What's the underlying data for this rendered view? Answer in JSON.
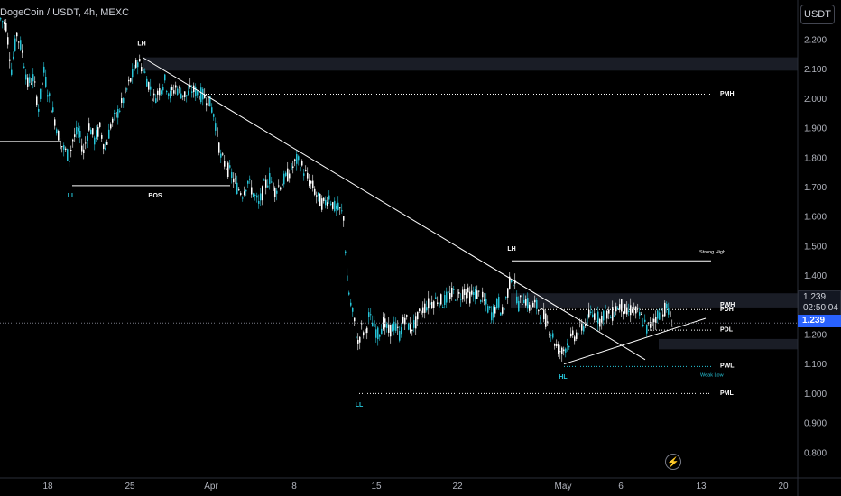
{
  "header": {
    "title": "DogeCoin / USDT, 4h, MEXC",
    "currency_label": "USDT"
  },
  "price_panel": {
    "last_price": "1.239",
    "countdown": "02:50:04",
    "current_price_label": "1.239"
  },
  "colors": {
    "background": "#000000",
    "candle_up": "#26c6da",
    "candle_down": "#ffffff",
    "drawing": "#ffffff",
    "label_blue": "#26c6da",
    "axis_text": "#b2b5be",
    "current_price": "#2962ff"
  },
  "chart_data": {
    "type": "candlestick",
    "symbol": "DogeCoin / USDT",
    "timeframe": "4h",
    "exchange": "MEXC",
    "y_axis": {
      "ticks": [
        "2.200",
        "2.100",
        "2.000",
        "1.900",
        "1.800",
        "1.700",
        "1.600",
        "1.500",
        "1.400",
        "1.300",
        "1.200",
        "1.100",
        "1.000",
        "0.900",
        "0.800"
      ],
      "range": [
        0.72,
        2.29
      ]
    },
    "x_axis": {
      "ticks": [
        "18",
        "25",
        "Apr",
        "8",
        "15",
        "22",
        "May",
        "6",
        "13",
        "20"
      ]
    },
    "price_path": [
      [
        0,
        2.27
      ],
      [
        6,
        2.25
      ],
      [
        12,
        2.1
      ],
      [
        18,
        2.22
      ],
      [
        24,
        2.16
      ],
      [
        30,
        2.05
      ],
      [
        36,
        2.07
      ],
      [
        42,
        1.97
      ],
      [
        48,
        2.09
      ],
      [
        54,
        2.0
      ],
      [
        60,
        1.93
      ],
      [
        66,
        1.85
      ],
      [
        72,
        1.82
      ],
      [
        76,
        1.8
      ],
      [
        80,
        1.86
      ],
      [
        86,
        1.89
      ],
      [
        92,
        1.82
      ],
      [
        98,
        1.91
      ],
      [
        104,
        1.86
      ],
      [
        110,
        1.9
      ],
      [
        116,
        1.83
      ],
      [
        122,
        1.91
      ],
      [
        128,
        1.94
      ],
      [
        134,
        1.98
      ],
      [
        140,
        2.03
      ],
      [
        146,
        2.08
      ],
      [
        152,
        2.13
      ],
      [
        158,
        2.1
      ],
      [
        164,
        2.05
      ],
      [
        170,
        2.0
      ],
      [
        176,
        2.03
      ],
      [
        182,
        2.06
      ],
      [
        188,
        2.01
      ],
      [
        194,
        2.04
      ],
      [
        200,
        2.02
      ],
      [
        206,
        2.01
      ],
      [
        212,
        2.03
      ],
      [
        218,
        2.02
      ],
      [
        224,
        2.01
      ],
      [
        230,
        2.0
      ],
      [
        236,
        1.95
      ],
      [
        240,
        1.88
      ],
      [
        244,
        1.8
      ],
      [
        250,
        1.77
      ],
      [
        256,
        1.74
      ],
      [
        262,
        1.7
      ],
      [
        268,
        1.68
      ],
      [
        274,
        1.72
      ],
      [
        280,
        1.68
      ],
      [
        286,
        1.64
      ],
      [
        292,
        1.7
      ],
      [
        298,
        1.73
      ],
      [
        304,
        1.69
      ],
      [
        310,
        1.71
      ],
      [
        316,
        1.73
      ],
      [
        322,
        1.76
      ],
      [
        328,
        1.79
      ],
      [
        334,
        1.77
      ],
      [
        340,
        1.73
      ],
      [
        346,
        1.7
      ],
      [
        352,
        1.66
      ],
      [
        358,
        1.64
      ],
      [
        364,
        1.67
      ],
      [
        370,
        1.63
      ],
      [
        376,
        1.62
      ],
      [
        380,
        1.6
      ],
      [
        384,
        1.38
      ],
      [
        388,
        1.3
      ],
      [
        392,
        1.24
      ],
      [
        396,
        1.17
      ],
      [
        400,
        1.22
      ],
      [
        404,
        1.2
      ],
      [
        408,
        1.26
      ],
      [
        412,
        1.24
      ],
      [
        418,
        1.2
      ],
      [
        424,
        1.24
      ],
      [
        430,
        1.21
      ],
      [
        436,
        1.23
      ],
      [
        442,
        1.2
      ],
      [
        448,
        1.26
      ],
      [
        454,
        1.22
      ],
      [
        460,
        1.24
      ],
      [
        466,
        1.28
      ],
      [
        472,
        1.3
      ],
      [
        478,
        1.31
      ],
      [
        484,
        1.32
      ],
      [
        490,
        1.31
      ],
      [
        496,
        1.33
      ],
      [
        502,
        1.34
      ],
      [
        508,
        1.33
      ],
      [
        514,
        1.35
      ],
      [
        520,
        1.33
      ],
      [
        526,
        1.34
      ],
      [
        532,
        1.33
      ],
      [
        538,
        1.3
      ],
      [
        544,
        1.27
      ],
      [
        548,
        1.29
      ],
      [
        552,
        1.31
      ],
      [
        556,
        1.27
      ],
      [
        560,
        1.32
      ],
      [
        566,
        1.4
      ],
      [
        570,
        1.36
      ],
      [
        574,
        1.3
      ],
      [
        580,
        1.33
      ],
      [
        586,
        1.29
      ],
      [
        592,
        1.3
      ],
      [
        598,
        1.28
      ],
      [
        604,
        1.25
      ],
      [
        610,
        1.21
      ],
      [
        616,
        1.16
      ],
      [
        622,
        1.14
      ],
      [
        628,
        1.17
      ],
      [
        634,
        1.19
      ],
      [
        640,
        1.21
      ],
      [
        646,
        1.23
      ],
      [
        652,
        1.26
      ],
      [
        658,
        1.27
      ],
      [
        664,
        1.25
      ],
      [
        670,
        1.28
      ],
      [
        676,
        1.26
      ],
      [
        682,
        1.29
      ],
      [
        688,
        1.3
      ],
      [
        694,
        1.27
      ],
      [
        700,
        1.29
      ],
      [
        706,
        1.27
      ],
      [
        712,
        1.25
      ],
      [
        716,
        1.22
      ],
      [
        720,
        1.23
      ],
      [
        726,
        1.26
      ],
      [
        732,
        1.28
      ],
      [
        738,
        1.29
      ],
      [
        742,
        1.26
      ],
      [
        746,
        1.24
      ]
    ],
    "drawings": [
      {
        "type": "trendline",
        "from": [
          158,
          2.14
        ],
        "to": [
          715,
          1.115
        ]
      },
      {
        "type": "trendline",
        "from": [
          625,
          1.1
        ],
        "to": [
          782,
          1.255
        ]
      },
      {
        "type": "hline",
        "label": "LL",
        "from": [
          80,
          1.705
        ],
        "to": [
          255,
          1.705
        ]
      },
      {
        "type": "hline",
        "label": "",
        "from": [
          0,
          1.855
        ],
        "to": [
          68,
          1.855
        ]
      },
      {
        "type": "dotted",
        "label": "PMH",
        "from": [
          228,
          2.015
        ],
        "to": [
          788,
          2.015
        ]
      },
      {
        "type": "hline",
        "label": "Strong High",
        "from": [
          567,
          1.45
        ],
        "to": [
          788,
          1.45
        ]
      },
      {
        "type": "dotted",
        "label": "PDH",
        "from": [
          598,
          1.285
        ],
        "to": [
          788,
          1.285
        ]
      },
      {
        "type": "dotted",
        "label": "PDL",
        "from": [
          718,
          1.215
        ],
        "to": [
          788,
          1.215
        ]
      },
      {
        "type": "dotted",
        "label": "PWL",
        "from": [
          625,
          1.092
        ],
        "to": [
          788,
          1.092
        ]
      },
      {
        "type": "dotted",
        "label": "PML",
        "from": [
          398,
          1.0
        ],
        "to": [
          788,
          1.0
        ]
      }
    ],
    "zones": [
      {
        "from_x": 158,
        "to_x": 884,
        "low": 2.095,
        "high": 2.14
      },
      {
        "from_x": 566,
        "to_x": 884,
        "low": 1.292,
        "high": 1.34
      },
      {
        "from_x": 730,
        "to_x": 884,
        "low": 1.15,
        "high": 1.185
      }
    ],
    "annotations": [
      {
        "text": "LH",
        "x": 157,
        "y": 2.18,
        "color": "white"
      },
      {
        "text": "LL",
        "x": 79,
        "y": 1.665,
        "color": "blue"
      },
      {
        "text": "BOS",
        "x": 172,
        "y": 1.665,
        "color": "white"
      },
      {
        "text": "LH",
        "x": 567,
        "y": 1.485,
        "color": "white"
      },
      {
        "text": "LL",
        "x": 398,
        "y": 0.955,
        "color": "blue"
      },
      {
        "text": "HL",
        "x": 624,
        "y": 1.05,
        "color": "blue"
      },
      {
        "text": "PMH",
        "x": 798,
        "y": 2.01,
        "color": "white"
      },
      {
        "text": "Strong High",
        "x": 775,
        "y": 1.475,
        "color": "white",
        "small": true
      },
      {
        "text": "PWH",
        "x": 798,
        "y": 1.295,
        "color": "white"
      },
      {
        "text": "PDH",
        "x": 798,
        "y": 1.28,
        "color": "white"
      },
      {
        "text": "PDL",
        "x": 798,
        "y": 1.21,
        "color": "white"
      },
      {
        "text": "PWL",
        "x": 798,
        "y": 1.088,
        "color": "white"
      },
      {
        "text": "Weak Low",
        "x": 776,
        "y": 1.058,
        "color": "blue",
        "small": true
      },
      {
        "text": "PML",
        "x": 798,
        "y": 0.995,
        "color": "white"
      }
    ],
    "current_price": 1.239
  }
}
